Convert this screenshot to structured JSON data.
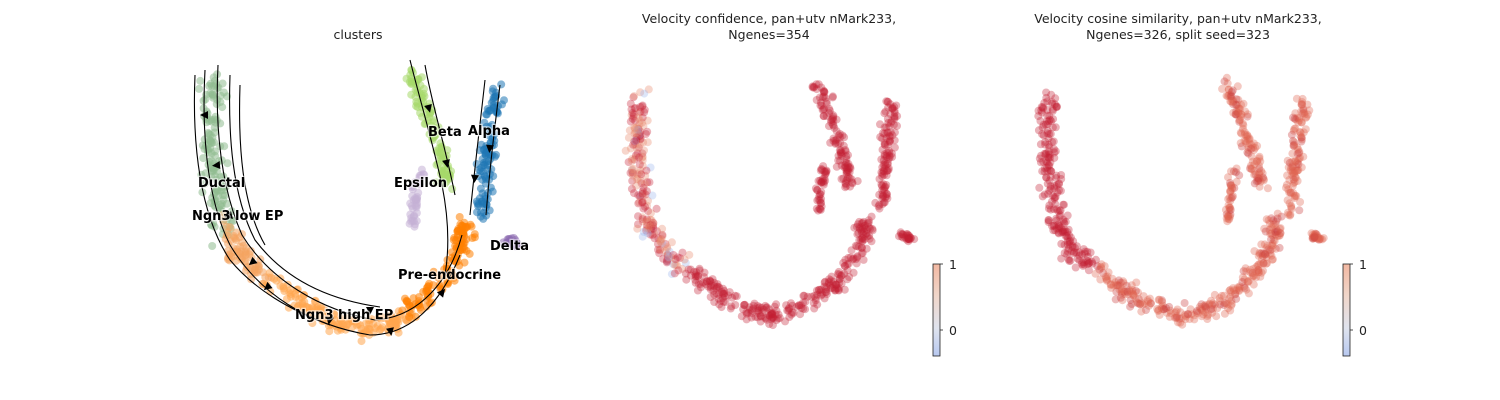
{
  "panels": [
    {
      "title_line1": "clusters",
      "title_line2": ""
    },
    {
      "title_line1": "Velocity confidence, pan+utv nMark233,",
      "title_line2": "Ngenes=354"
    },
    {
      "title_line1": "Velocity cosine similarity, pan+utv nMark233,",
      "title_line2": "Ngenes=326, split seed=323"
    }
  ],
  "cluster_labels": [
    "Ductal",
    "Ngn3 low EP",
    "Ngn3 high EP",
    "Pre-endocrine",
    "Beta",
    "Alpha",
    "Delta",
    "Epsilon"
  ],
  "cluster_colors": {
    "Ductal": "#8fbc8f",
    "Ngn3 low EP": "#f4a460",
    "Ngn3 high EP": "#ffa54f",
    "Pre-endocrine": "#ff8000",
    "Beta": "#a6d96a",
    "Alpha": "#1f77b4",
    "Delta": "#8c6bb1",
    "Epsilon": "#c5b0d5"
  },
  "colorbars": [
    {
      "ticks": [
        "1",
        "0"
      ],
      "colormap": "coolwarm"
    },
    {
      "ticks": [
        "1",
        "0"
      ],
      "colormap": "coolwarm"
    }
  ],
  "chart_data": [
    {
      "type": "scatter",
      "title": "clusters",
      "categories": [
        "Ductal",
        "Ngn3 low EP",
        "Ngn3 high EP",
        "Pre-endocrine",
        "Beta",
        "Alpha",
        "Delta",
        "Epsilon"
      ],
      "overlay": "velocity streamlines",
      "axes": "off"
    },
    {
      "type": "scatter",
      "title": "Velocity confidence, pan+utv nMark233, Ngenes=354",
      "color_scale": {
        "min": 0,
        "max": 1,
        "colormap": "coolwarm"
      },
      "axes": "off"
    },
    {
      "type": "scatter",
      "title": "Velocity cosine similarity, pan+utv nMark233, Ngenes=326, split seed=323",
      "color_scale": {
        "min": 0,
        "max": 1,
        "colormap": "coolwarm"
      },
      "axes": "off"
    }
  ]
}
